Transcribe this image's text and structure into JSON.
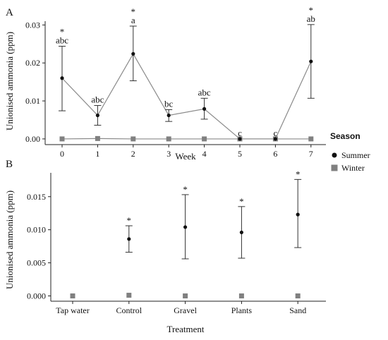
{
  "chart_data": [
    {
      "panel": "A",
      "type": "line",
      "xlabel": "Week",
      "ylabel": "Unionised ammonia (ppm)",
      "x_ticks": [
        "0",
        "1",
        "2",
        "3",
        "4",
        "5",
        "6",
        "7"
      ],
      "y_ticks": [
        "0.00",
        "0.01",
        "0.02",
        "0.03"
      ],
      "ylim": [
        -0.0015,
        0.031
      ],
      "series": [
        {
          "name": "Summer",
          "color": "#111111",
          "marker": "circle",
          "x": [
            0,
            1,
            2,
            3,
            4,
            5,
            6,
            7
          ],
          "y": [
            0.016,
            0.0062,
            0.0224,
            0.0062,
            0.0079,
            0.0,
            0.0,
            0.0204
          ],
          "err_low": [
            0.0074,
            0.0036,
            0.0153,
            0.0046,
            0.0052,
            0.0,
            0.0,
            0.0107
          ],
          "err_high": [
            0.0244,
            0.0088,
            0.0297,
            0.0077,
            0.0107,
            0.0,
            0.0,
            0.0301
          ],
          "labels": [
            "abc",
            "abc",
            "a",
            "bc",
            "abc",
            "c",
            "c",
            "ab"
          ],
          "stars": [
            "*",
            "",
            "*",
            "",
            "",
            "",
            "",
            "*"
          ]
        },
        {
          "name": "Winter",
          "color": "#808080",
          "marker": "square",
          "x": [
            0,
            1,
            2,
            3,
            4,
            5,
            6,
            7
          ],
          "y": [
            0.0,
            0.0001,
            0.0,
            0.0,
            0.0,
            0.0,
            0.0,
            0.0
          ]
        }
      ]
    },
    {
      "panel": "B",
      "type": "scatter",
      "xlabel": "Treatment",
      "ylabel": "Unionised ammonia (ppm)",
      "categories": [
        "Tap water",
        "Control",
        "Gravel",
        "Plants",
        "Sand"
      ],
      "y_ticks": [
        "0.000",
        "0.005",
        "0.010",
        "0.015"
      ],
      "ylim": [
        -0.0008,
        0.0186
      ],
      "series": [
        {
          "name": "Summer",
          "color": "#111111",
          "marker": "circle",
          "values": [
            null,
            0.0086,
            0.0104,
            0.0096,
            0.0123
          ],
          "err_low": [
            null,
            0.0066,
            0.0056,
            0.0057,
            0.0073
          ],
          "err_high": [
            null,
            0.0106,
            0.0153,
            0.0135,
            0.0176
          ],
          "stars": [
            "",
            "*",
            "*",
            "*",
            "*"
          ]
        },
        {
          "name": "Winter",
          "color": "#808080",
          "marker": "square",
          "values": [
            0.0,
            0.0001,
            0.0,
            0.0,
            0.0
          ]
        }
      ]
    }
  ],
  "legend": {
    "title": "Season",
    "placement": "right",
    "items": [
      {
        "label": "Summer",
        "color": "#111111",
        "marker": "circle"
      },
      {
        "label": "Winter",
        "color": "#808080",
        "marker": "square"
      }
    ]
  }
}
